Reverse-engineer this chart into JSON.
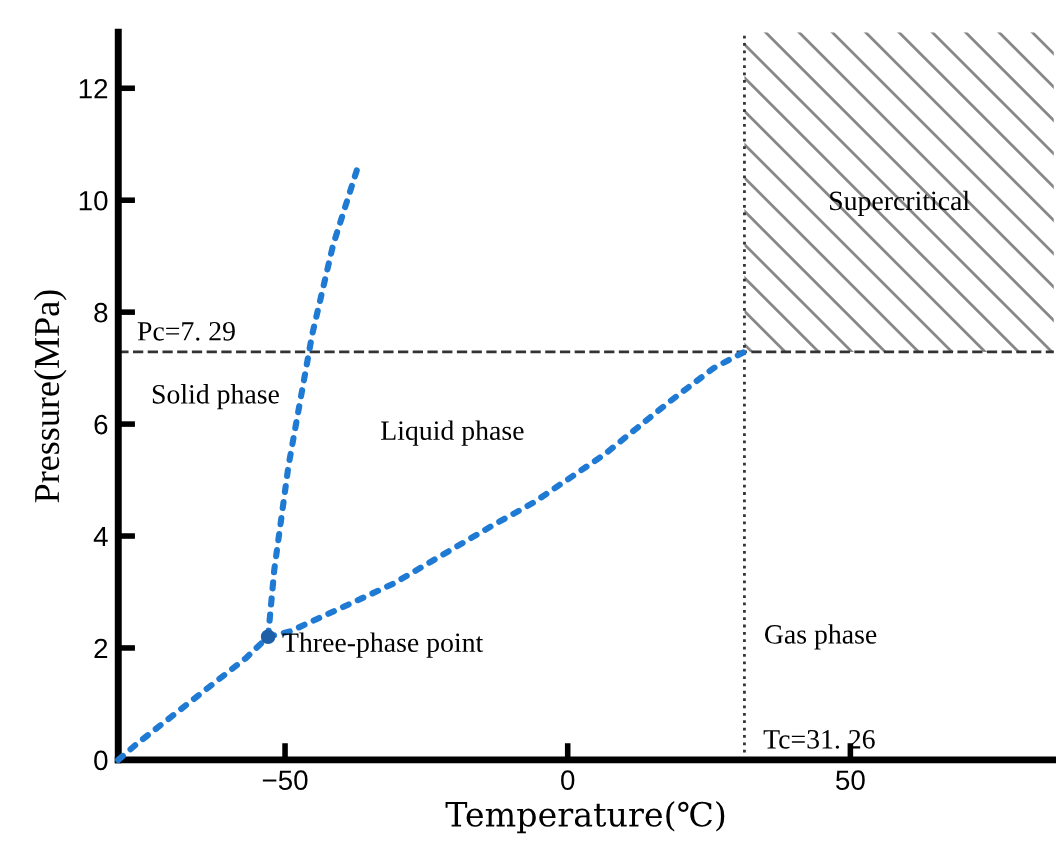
{
  "chart_data": {
    "type": "line",
    "xlabel": "Temperature(℃)",
    "ylabel": "Pressure(MPa)",
    "xlim": [
      -79.5,
      86
    ],
    "ylim": [
      0,
      13
    ],
    "xticks": [
      -50,
      0,
      50
    ],
    "yticks": [
      0,
      2,
      4,
      6,
      8,
      10,
      12
    ],
    "grid": false,
    "legend": false,
    "line_style": "dotted",
    "series": [
      {
        "color": "#1f7ad4",
        "x": [
          -79.5,
          -76.3,
          -56.9,
          -53
        ],
        "values": [
          0,
          0.28,
          1.82,
          2.2
        ]
      },
      {
        "color": "#1f7ad4",
        "x": [
          -53,
          -51.9,
          -49.4,
          -45.2,
          -41.5,
          -37.1
        ],
        "values": [
          2.2,
          3.4,
          5.25,
          7.6,
          9.2,
          10.6
        ]
      },
      {
        "color": "#1f7ad4",
        "x": [
          -53,
          -49,
          -30.8,
          -13.1,
          -6,
          6.4,
          18,
          25.8,
          31.26
        ],
        "values": [
          2.2,
          2.3,
          3.15,
          4.2,
          4.6,
          5.45,
          6.4,
          7.0,
          7.29
        ]
      },
      {
        "type": "scatter",
        "marker": "circle",
        "color": "#1f5fa8",
        "x": [
          -53
        ],
        "values": [
          2.2
        ]
      }
    ],
    "ref_lines": [
      {
        "axis": "y",
        "value": 7.29,
        "label": "Pc=7. 29",
        "color": "#333333",
        "line_style": "dashed"
      },
      {
        "axis": "x",
        "value": 31.26,
        "label": "Tc=31. 26",
        "color": "#333333",
        "line_style": "dotted"
      }
    ],
    "bands": [
      {
        "axis": "x",
        "from": 31.26,
        "to": 86,
        "label": "Supercritical",
        "color": "#888888"
      }
    ],
    "annotations": [
      "Solid phase",
      "Liquid phase",
      {
        "text": "Three-phase point",
        "x": -53,
        "y": 2.2
      },
      "Gas phase"
    ]
  }
}
